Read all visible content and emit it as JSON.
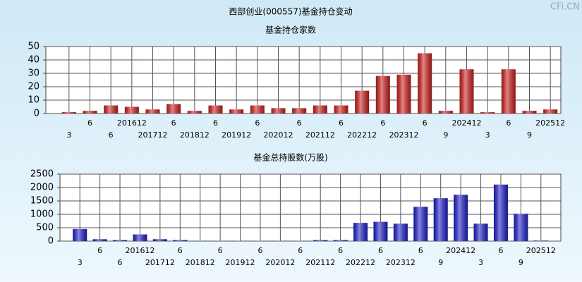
{
  "title": "西部创业(000557)基金持仓变动",
  "watermark": "CFi.CN",
  "chart_data": [
    {
      "type": "bar",
      "title": "基金持仓家数",
      "categories": [
        "3",
        "6",
        "6",
        "201612",
        "201712",
        "6",
        "201812",
        "6",
        "201912",
        "6",
        "202012",
        "6",
        "202112",
        "6",
        "202212",
        "6",
        "202312",
        "6",
        "9",
        "202412",
        "3",
        "6",
        "9",
        "202512"
      ],
      "values": [
        1,
        2,
        6,
        5,
        3,
        7,
        2,
        6,
        3,
        6,
        4,
        4,
        6,
        6,
        17,
        28,
        29,
        45,
        2,
        33,
        1,
        33,
        2,
        3
      ],
      "color": "#d42020",
      "ylim": [
        0,
        50
      ],
      "yticks": [
        0,
        10,
        20,
        30,
        40,
        50
      ],
      "grid": true
    },
    {
      "type": "bar",
      "title": "基金总持股数(万股)",
      "categories": [
        "3",
        "6",
        "6",
        "201612",
        "201712",
        "6",
        "201812",
        "6",
        "201912",
        "6",
        "202012",
        "6",
        "202112",
        "6",
        "202212",
        "6",
        "202312",
        "6",
        "9",
        "202412",
        "3",
        "6",
        "9",
        "202512"
      ],
      "values": [
        450,
        70,
        40,
        250,
        70,
        40,
        10,
        10,
        10,
        10,
        10,
        10,
        40,
        40,
        680,
        720,
        650,
        1280,
        1600,
        1730,
        650,
        2110,
        1020,
        20
      ],
      "color": "#2020d0",
      "ylim": [
        0,
        2500
      ],
      "yticks": [
        0,
        500,
        1000,
        1500,
        2000,
        2500
      ],
      "grid": true
    }
  ]
}
